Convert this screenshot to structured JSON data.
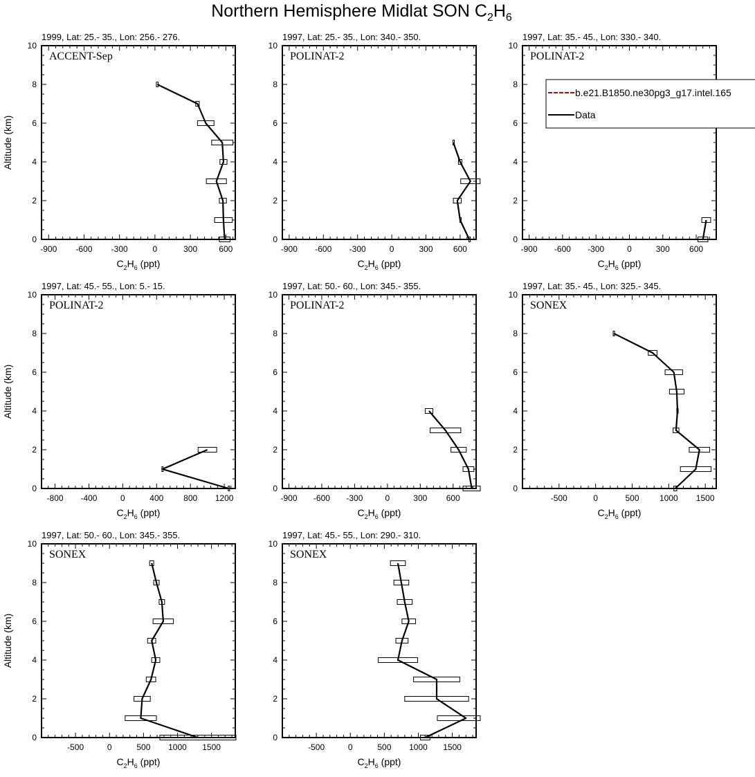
{
  "page": {
    "title_main": "Northern Hemisphere Midlat SON C",
    "title_sub1": "2",
    "title_mid": "H",
    "title_sub2": "6"
  },
  "chart_data": [
    {
      "type": "line",
      "header": "1999, Lat: 25.- 35., Lon: 256.- 276.",
      "campaign": "ACCENT-Sep",
      "ylabel": "Altitude (km)",
      "xlabel": "C2H6 (ppt)",
      "xlim": [
        -960,
        680
      ],
      "ylim": [
        0,
        10
      ],
      "xticks": [
        -900,
        -600,
        -300,
        0,
        300,
        600
      ],
      "yticks": [
        0,
        2,
        4,
        6,
        8,
        10
      ],
      "series": [
        {
          "name": "Data",
          "x": [
            20,
            360,
            430,
            570,
            580,
            520,
            575,
            580,
            590
          ],
          "y": [
            8,
            7,
            6,
            5,
            4,
            3,
            2,
            1,
            0
          ],
          "err": [
            8,
            15,
            70,
            90,
            30,
            85,
            30,
            75,
            45
          ]
        }
      ]
    },
    {
      "type": "line",
      "header": "1997, Lat: 25.- 35., Lon: 340.- 350.",
      "campaign": "POLINAT-2",
      "ylabel": "",
      "xlabel": "C2H6 (ppt)",
      "xlim": [
        -960,
        740
      ],
      "ylim": [
        0,
        10
      ],
      "xticks": [
        -900,
        -600,
        -300,
        0,
        300,
        600
      ],
      "yticks": [
        0,
        2,
        4,
        6,
        8,
        10
      ],
      "series": [
        {
          "name": "Data",
          "x": [
            540,
            600,
            690,
            575,
            600,
            680
          ],
          "y": [
            5,
            4,
            3,
            2,
            1,
            0
          ],
          "err": [
            3,
            15,
            85,
            35,
            3,
            3
          ]
        }
      ]
    },
    {
      "type": "line",
      "header": "1997, Lat: 35.- 45., Lon: 330.- 340.",
      "campaign": "POLINAT-2",
      "ylabel": "",
      "xlabel": "C2H6 (ppt)",
      "xlim": [
        -960,
        780
      ],
      "ylim": [
        0,
        10
      ],
      "xticks": [
        -900,
        -600,
        -300,
        0,
        300,
        600
      ],
      "yticks": [
        0,
        2,
        4,
        6,
        8,
        10
      ],
      "legend": [
        "b.e21.B1850.ne30pg3_g17.intel.165",
        "Data"
      ],
      "legend_colors": [
        "#cc0000",
        "#000000"
      ],
      "series": [
        {
          "name": "Data",
          "x": [
            690,
            660
          ],
          "y": [
            1,
            0
          ],
          "err": [
            40,
            45
          ]
        }
      ]
    },
    {
      "type": "line",
      "header": "1997, Lat: 45.- 55., Lon: 5.- 15.",
      "campaign": "POLINAT-2",
      "ylabel": "Altitude (km)",
      "xlabel": "C2H6 (ppt)",
      "xlim": [
        -960,
        1330
      ],
      "ylim": [
        0,
        10
      ],
      "xticks": [
        -800,
        -400,
        0,
        400,
        800,
        1200
      ],
      "yticks": [
        0,
        2,
        4,
        6,
        8,
        10
      ],
      "series": [
        {
          "name": "Data",
          "x": [
            1000,
            470,
            1250
          ],
          "y": [
            2,
            1,
            0
          ],
          "err": [
            110,
            8,
            3
          ]
        }
      ]
    },
    {
      "type": "line",
      "header": "1997, Lat: 50.- 60., Lon: 345.- 355.",
      "campaign": "POLINAT-2",
      "ylabel": "",
      "xlabel": "C2H6 (ppt)",
      "xlim": [
        -960,
        810
      ],
      "ylim": [
        0,
        10
      ],
      "xticks": [
        -900,
        -600,
        -300,
        0,
        300,
        600
      ],
      "yticks": [
        0,
        2,
        4,
        6,
        8,
        10
      ],
      "series": [
        {
          "name": "Data",
          "x": [
            380,
            530,
            650,
            740,
            770
          ],
          "y": [
            4,
            3,
            2,
            1,
            0
          ],
          "err": [
            35,
            140,
            70,
            50,
            80
          ]
        }
      ]
    },
    {
      "type": "line",
      "header": "1997, Lat: 35.- 45., Lon: 325.- 345.",
      "campaign": "SONEX",
      "ylabel": "",
      "xlabel": "C2H6 (ppt)",
      "xlim": [
        -1000,
        1650
      ],
      "ylim": [
        0,
        10
      ],
      "xticks": [
        -500,
        0,
        500,
        1000,
        1500
      ],
      "yticks": [
        0,
        2,
        4,
        6,
        8,
        10
      ],
      "series": [
        {
          "name": "Data",
          "x": [
            250,
            780,
            1070,
            1110,
            1120,
            1100,
            1420,
            1370,
            1090
          ],
          "y": [
            8,
            7,
            6,
            5,
            4,
            3,
            2,
            1,
            0
          ],
          "err": [
            10,
            60,
            120,
            100,
            10,
            40,
            140,
            210,
            20
          ]
        }
      ]
    },
    {
      "type": "line",
      "header": "1997, Lat: 50.- 60., Lon: 345.- 355.",
      "campaign": "SONEX",
      "ylabel": "Altitude (km)",
      "xlabel": "C2H6 (ppt)",
      "xlim": [
        -1000,
        1850
      ],
      "ylim": [
        0,
        10
      ],
      "xticks": [
        -500,
        0,
        500,
        1000,
        1500
      ],
      "yticks": [
        0,
        2,
        4,
        6,
        8,
        10
      ],
      "series": [
        {
          "name": "Data",
          "x": [
            620,
            690,
            770,
            790,
            620,
            680,
            610,
            480,
            460,
            1300
          ],
          "y": [
            9,
            8,
            7,
            6,
            5,
            4,
            3,
            2,
            1,
            0
          ],
          "err": [
            30,
            40,
            40,
            150,
            60,
            60,
            70,
            120,
            230,
            560
          ]
        }
      ]
    },
    {
      "type": "line",
      "header": "1997, Lat: 45.- 55., Lon: 290.- 310.",
      "campaign": "SONEX",
      "ylabel": "",
      "xlabel": "C2H6 (ppt)",
      "xlim": [
        -1000,
        1850
      ],
      "ylim": [
        0,
        10
      ],
      "xticks": [
        -500,
        0,
        500,
        1000,
        1500
      ],
      "yticks": [
        0,
        2,
        4,
        6,
        8,
        10
      ],
      "series": [
        {
          "name": "Data",
          "x": [
            700,
            750,
            800,
            860,
            760,
            700,
            1270,
            1270,
            1700,
            1100
          ],
          "y": [
            9,
            8,
            7,
            6,
            5,
            4,
            3,
            2,
            1,
            0
          ],
          "err": [
            110,
            110,
            110,
            100,
            90,
            290,
            340,
            470,
            420,
            70
          ]
        }
      ]
    }
  ]
}
